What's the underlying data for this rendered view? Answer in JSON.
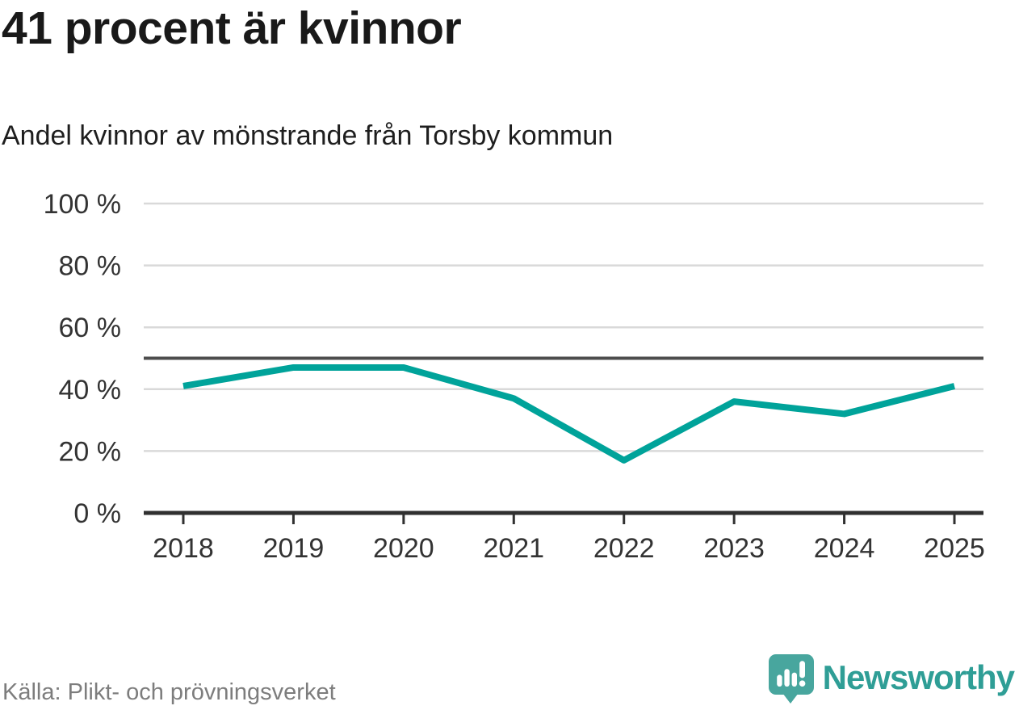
{
  "header": {
    "title": "41 procent är kvinnor",
    "subtitle": "Andel kvinnor av mönstrande från Torsby kommun"
  },
  "footer": {
    "source": "Källa: Plikt- och prövningsverket",
    "brand": "Newsworthy"
  },
  "colors": {
    "accent_line": "#00a39a",
    "reference_line": "#4d4d4d",
    "axis": "#303030",
    "grid": "#d9d9d9",
    "tick_text": "#333333",
    "muted_text": "#7d7d7d",
    "logo_teal": "#48a69e",
    "logo_teal_dark": "#2f8f87",
    "wordmark_teal": "#2f9e96"
  },
  "chart_data": {
    "type": "line",
    "title": "41 procent är kvinnor",
    "subtitle": "Andel kvinnor av mönstrande från Torsby kommun",
    "categories": [
      "2018",
      "2019",
      "2020",
      "2021",
      "2022",
      "2023",
      "2024",
      "2025"
    ],
    "series": [
      {
        "name": "Andel kvinnor av mönstrande, Torsby kommun",
        "values": [
          41,
          47,
          47,
          37,
          17,
          36,
          32,
          41
        ]
      }
    ],
    "unit": "%",
    "ylim": [
      0,
      100
    ],
    "yticks": [
      0,
      20,
      40,
      60,
      80,
      100
    ],
    "ytick_suffix": " %",
    "reference_line": 50,
    "grid": true,
    "legend": "none",
    "source": "Källa: Plikt- och prövningsverket"
  }
}
